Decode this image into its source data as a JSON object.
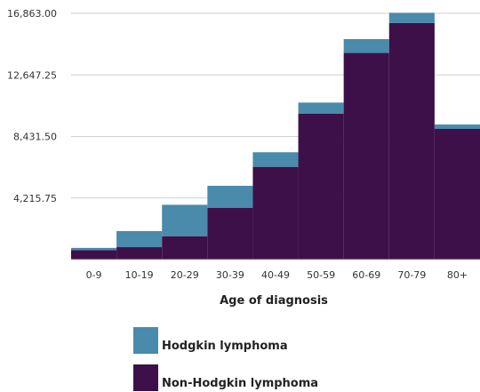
{
  "chart_data": {
    "type": "bar",
    "stacked": true,
    "categories": [
      "0-9",
      "10-19",
      "20-29",
      "30-39",
      "40-49",
      "50-59",
      "60-69",
      "70-79",
      "80+"
    ],
    "series": [
      {
        "name": "Non-Hodgkin lymphoma",
        "values": [
          650,
          850,
          1600,
          3550,
          6350,
          10000,
          14150,
          16200,
          8950
        ]
      },
      {
        "name": "Hodgkin lymphoma",
        "values": [
          150,
          1100,
          2150,
          1500,
          1000,
          750,
          950,
          700,
          300
        ]
      }
    ],
    "xlabel": "Age of diagnosis",
    "ylabel": "",
    "yticks": [
      "4,215.75",
      "8,431.50",
      "12,647.25",
      "16,863.00"
    ],
    "ytick_values": [
      4215.75,
      8431.5,
      12647.25,
      16863.0
    ],
    "ylim": [
      0,
      16863
    ],
    "grid": true,
    "legend_position": "bottom"
  },
  "colors": {
    "Hodgkin lymphoma": "#4a8aaa",
    "Non-Hodgkin lymphoma": "#3d1049",
    "grid": "#cfcfcf"
  }
}
